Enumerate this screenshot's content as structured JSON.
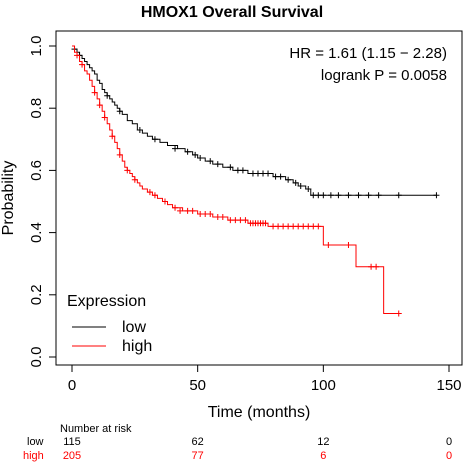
{
  "chart_data": {
    "type": "line",
    "title": "HMOX1 Overall Survival",
    "xlabel": "Time (months)",
    "ylabel": "Probability",
    "xlim": [
      0,
      150
    ],
    "ylim": [
      0,
      1
    ],
    "xticks": [
      0,
      50,
      100,
      150
    ],
    "yticks": [
      0.0,
      0.2,
      0.4,
      0.6,
      0.8,
      1.0
    ],
    "grid": false,
    "stats": {
      "hr_text": "HR = 1.61 (1.15 − 2.28)",
      "logrank_text": "logrank P = 0.0058"
    },
    "legend": {
      "title": "Expression",
      "placement": "bottom-left"
    },
    "series": [
      {
        "name": "low",
        "color": "#000000",
        "points": [
          [
            0,
            1.0
          ],
          [
            1,
            0.99
          ],
          [
            2,
            0.98
          ],
          [
            3,
            0.97
          ],
          [
            4,
            0.96
          ],
          [
            5,
            0.95
          ],
          [
            6,
            0.94
          ],
          [
            7,
            0.93
          ],
          [
            8,
            0.92
          ],
          [
            9,
            0.91
          ],
          [
            10,
            0.89
          ],
          [
            11,
            0.88
          ],
          [
            12,
            0.86
          ],
          [
            13,
            0.85
          ],
          [
            14,
            0.84
          ],
          [
            15,
            0.83
          ],
          [
            16,
            0.82
          ],
          [
            17,
            0.81
          ],
          [
            18,
            0.8
          ],
          [
            19,
            0.79
          ],
          [
            20,
            0.78
          ],
          [
            22,
            0.76
          ],
          [
            24,
            0.75
          ],
          [
            26,
            0.73
          ],
          [
            28,
            0.72
          ],
          [
            30,
            0.71
          ],
          [
            32,
            0.7
          ],
          [
            35,
            0.69
          ],
          [
            38,
            0.68
          ],
          [
            42,
            0.67
          ],
          [
            45,
            0.66
          ],
          [
            48,
            0.65
          ],
          [
            50,
            0.64
          ],
          [
            53,
            0.63
          ],
          [
            56,
            0.62
          ],
          [
            60,
            0.61
          ],
          [
            64,
            0.6
          ],
          [
            70,
            0.59
          ],
          [
            80,
            0.58
          ],
          [
            85,
            0.57
          ],
          [
            88,
            0.56
          ],
          [
            90,
            0.55
          ],
          [
            93,
            0.54
          ],
          [
            95,
            0.52
          ],
          [
            145,
            0.52
          ]
        ],
        "censors": [
          [
            1,
            0.99
          ],
          [
            3,
            0.97
          ],
          [
            14,
            0.84
          ],
          [
            19,
            0.79
          ],
          [
            27,
            0.73
          ],
          [
            33,
            0.7
          ],
          [
            41,
            0.67
          ],
          [
            46,
            0.66
          ],
          [
            49,
            0.65
          ],
          [
            51,
            0.64
          ],
          [
            55,
            0.63
          ],
          [
            58,
            0.62
          ],
          [
            63,
            0.61
          ],
          [
            66,
            0.6
          ],
          [
            68,
            0.6
          ],
          [
            72,
            0.59
          ],
          [
            74,
            0.59
          ],
          [
            76,
            0.59
          ],
          [
            78,
            0.59
          ],
          [
            81,
            0.58
          ],
          [
            83,
            0.58
          ],
          [
            86,
            0.57
          ],
          [
            89,
            0.56
          ],
          [
            91,
            0.55
          ],
          [
            94,
            0.54
          ],
          [
            96,
            0.52
          ],
          [
            98,
            0.52
          ],
          [
            100,
            0.52
          ],
          [
            103,
            0.52
          ],
          [
            106,
            0.52
          ],
          [
            110,
            0.52
          ],
          [
            114,
            0.52
          ],
          [
            118,
            0.52
          ],
          [
            122,
            0.52
          ],
          [
            130,
            0.52
          ],
          [
            145,
            0.52
          ]
        ]
      },
      {
        "name": "high",
        "color": "#ff0000",
        "points": [
          [
            0,
            1.0
          ],
          [
            1,
            0.98
          ],
          [
            2,
            0.97
          ],
          [
            3,
            0.95
          ],
          [
            4,
            0.94
          ],
          [
            5,
            0.92
          ],
          [
            6,
            0.91
          ],
          [
            7,
            0.89
          ],
          [
            8,
            0.87
          ],
          [
            9,
            0.85
          ],
          [
            10,
            0.83
          ],
          [
            11,
            0.81
          ],
          [
            12,
            0.79
          ],
          [
            13,
            0.77
          ],
          [
            14,
            0.75
          ],
          [
            15,
            0.73
          ],
          [
            16,
            0.71
          ],
          [
            17,
            0.69
          ],
          [
            18,
            0.67
          ],
          [
            19,
            0.65
          ],
          [
            20,
            0.63
          ],
          [
            21,
            0.61
          ],
          [
            22,
            0.6
          ],
          [
            23,
            0.59
          ],
          [
            24,
            0.58
          ],
          [
            25,
            0.57
          ],
          [
            26,
            0.56
          ],
          [
            27,
            0.55
          ],
          [
            28,
            0.54
          ],
          [
            30,
            0.53
          ],
          [
            32,
            0.52
          ],
          [
            34,
            0.51
          ],
          [
            36,
            0.5
          ],
          [
            38,
            0.49
          ],
          [
            40,
            0.48
          ],
          [
            44,
            0.47
          ],
          [
            50,
            0.46
          ],
          [
            56,
            0.45
          ],
          [
            62,
            0.44
          ],
          [
            70,
            0.43
          ],
          [
            78,
            0.42
          ],
          [
            100,
            0.42
          ],
          [
            100,
            0.36
          ],
          [
            113,
            0.36
          ],
          [
            113,
            0.29
          ],
          [
            124,
            0.29
          ],
          [
            124,
            0.14
          ],
          [
            130,
            0.14
          ]
        ],
        "censors": [
          [
            2,
            0.97
          ],
          [
            4,
            0.94
          ],
          [
            9,
            0.85
          ],
          [
            11,
            0.81
          ],
          [
            13,
            0.77
          ],
          [
            16,
            0.71
          ],
          [
            19,
            0.65
          ],
          [
            22,
            0.6
          ],
          [
            25,
            0.57
          ],
          [
            31,
            0.53
          ],
          [
            33,
            0.52
          ],
          [
            37,
            0.5
          ],
          [
            41,
            0.48
          ],
          [
            43,
            0.47
          ],
          [
            46,
            0.47
          ],
          [
            48,
            0.47
          ],
          [
            51,
            0.46
          ],
          [
            53,
            0.46
          ],
          [
            55,
            0.46
          ],
          [
            58,
            0.45
          ],
          [
            60,
            0.45
          ],
          [
            63,
            0.44
          ],
          [
            65,
            0.44
          ],
          [
            67,
            0.44
          ],
          [
            69,
            0.44
          ],
          [
            71,
            0.43
          ],
          [
            72,
            0.43
          ],
          [
            73,
            0.43
          ],
          [
            74,
            0.43
          ],
          [
            75,
            0.43
          ],
          [
            76,
            0.43
          ],
          [
            77,
            0.43
          ],
          [
            80,
            0.42
          ],
          [
            82,
            0.42
          ],
          [
            84,
            0.42
          ],
          [
            86,
            0.42
          ],
          [
            88,
            0.42
          ],
          [
            90,
            0.42
          ],
          [
            92,
            0.42
          ],
          [
            94,
            0.42
          ],
          [
            96,
            0.42
          ],
          [
            98,
            0.42
          ],
          [
            102,
            0.36
          ],
          [
            110,
            0.36
          ],
          [
            119,
            0.29
          ],
          [
            121,
            0.29
          ],
          [
            130,
            0.14
          ]
        ]
      }
    ]
  },
  "risk_table": {
    "title": "Number at risk",
    "rows": [
      {
        "label": "low",
        "color": "#000000",
        "values": [
          "115",
          "62",
          "12",
          "0"
        ]
      },
      {
        "label": "high",
        "color": "#ff0000",
        "values": [
          "205",
          "77",
          "6",
          "0"
        ]
      }
    ]
  }
}
